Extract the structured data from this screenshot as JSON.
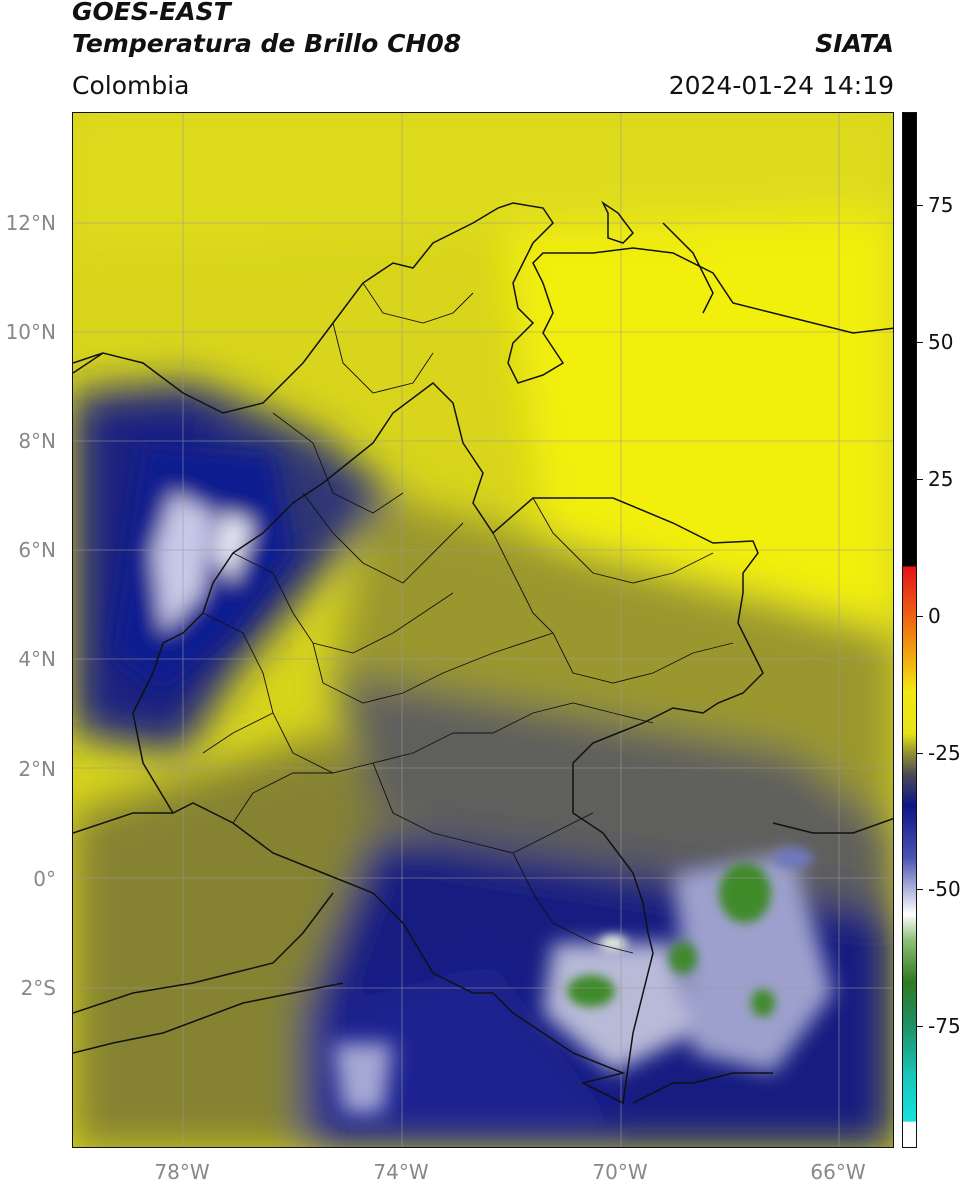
{
  "header": {
    "title_line1": "GOES-EAST",
    "title_line2": "Temperatura de Brillo CH08",
    "region": "Colombia",
    "brand": "SIATA",
    "timestamp": "2024-01-24 14:19"
  },
  "map": {
    "lat_labels": [
      "12°N",
      "10°N",
      "8°N",
      "6°N",
      "4°N",
      "2°N",
      "0°",
      "2°S"
    ],
    "lon_labels": [
      "78°W",
      "74°W",
      "70°W",
      "66°W"
    ],
    "colors": {
      "yellow": "#e6e318",
      "olive": "#8f8d34",
      "grey": "#5a5a60",
      "navy": "#0d1686",
      "white": "#f2f2f2",
      "green": "#3f8a2a",
      "border": "#111111"
    }
  },
  "colorbar": {
    "labels": [
      "75",
      "50",
      "25",
      "0",
      "-25",
      "-50",
      "-75"
    ]
  }
}
